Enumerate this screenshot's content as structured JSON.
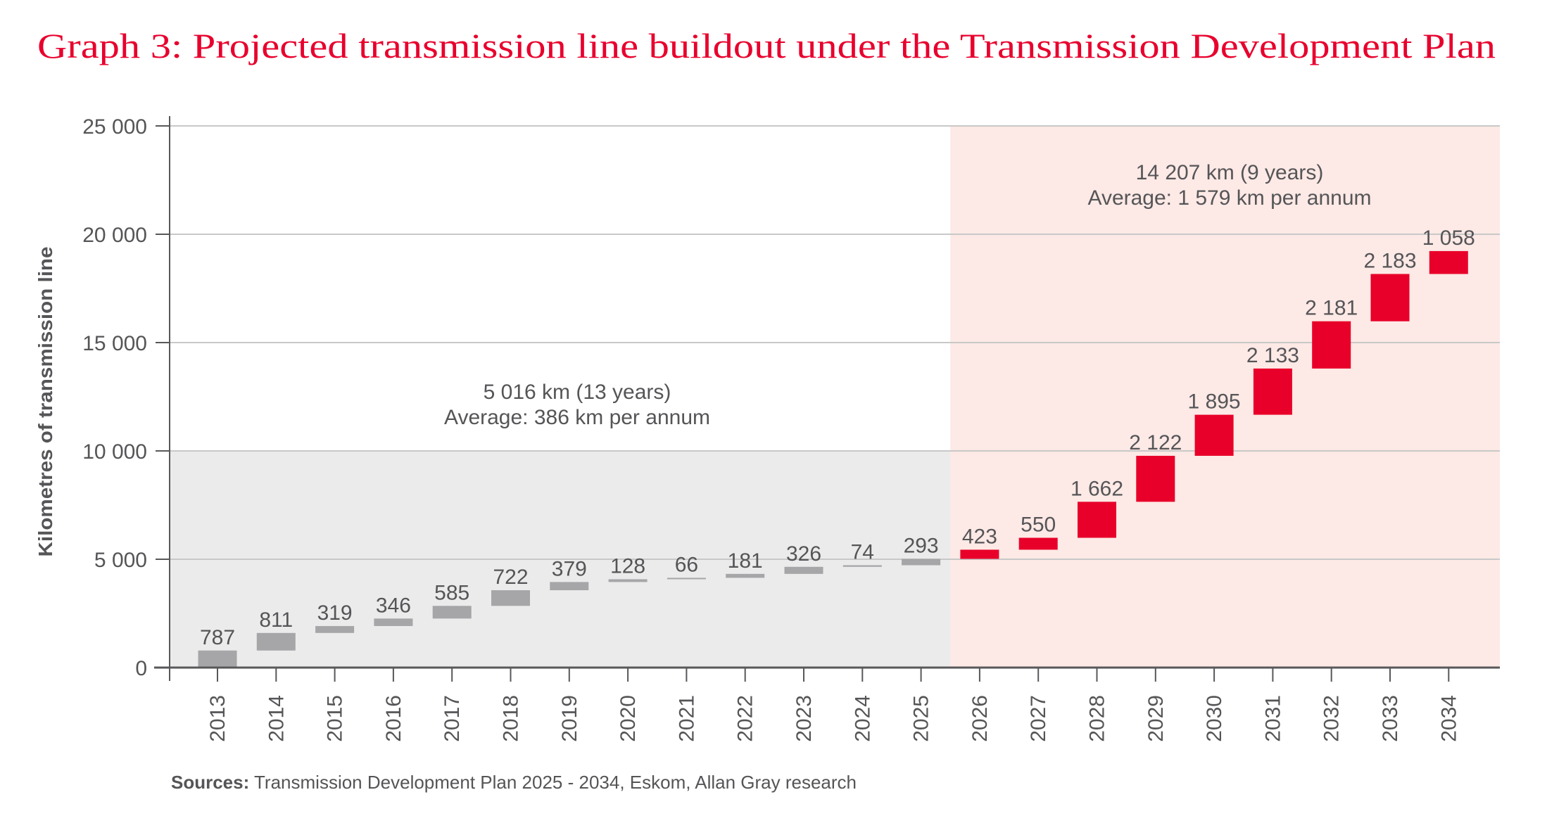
{
  "title": "Graph 3: Projected transmission line buildout under the Transmission Development Plan",
  "colors": {
    "title": "#e8002d",
    "historical_bar": "#a6a6a9",
    "projected_bar": "#e8002a",
    "historical_bg": "#ebebeb",
    "projected_bg": "#fde9e5",
    "grid": "#c8c8c8",
    "axis": "#58585b"
  },
  "chart_data": {
    "type": "bar",
    "subtype": "waterfall",
    "title": "Graph 3: Projected transmission line buildout under the Transmission Development Plan",
    "xlabel": "",
    "ylabel": "Kilometres of transmission line",
    "ylim": [
      0,
      25000
    ],
    "yticks": [
      0,
      5000,
      10000,
      15000,
      20000,
      25000
    ],
    "ytick_labels": [
      "0",
      "5 000",
      "10 000",
      "15 000",
      "20 000",
      "25 000"
    ],
    "grid": true,
    "categories": [
      "2013",
      "2014",
      "2015",
      "2016",
      "2017",
      "2018",
      "2019",
      "2020",
      "2021",
      "2022",
      "2023",
      "2024",
      "2025",
      "2026",
      "2027",
      "2028",
      "2029",
      "2030",
      "2031",
      "2032",
      "2033",
      "2034"
    ],
    "values": [
      787,
      811,
      319,
      346,
      585,
      722,
      379,
      128,
      66,
      181,
      326,
      74,
      293,
      423,
      550,
      1662,
      2122,
      1895,
      2133,
      2181,
      2183,
      1058
    ],
    "value_labels": [
      "787",
      "811",
      "319",
      "346",
      "585",
      "722",
      "379",
      "128",
      "66",
      "181",
      "326",
      "74",
      "293",
      "423",
      "550",
      "1 662",
      "2 122",
      "1 895",
      "2 133",
      "2 181",
      "2 183",
      "1 058"
    ],
    "historical_through": "2025",
    "regions": [
      {
        "name": "historical",
        "from": "2013",
        "to": "2025",
        "shade_to_y": 10000,
        "annotation": [
          "5 016 km (13 years)",
          "Average: 386 km per annum"
        ]
      },
      {
        "name": "projected",
        "from": "2026",
        "to": "2034",
        "shade_to_y": 25000,
        "annotation": [
          "14 207 km (9 years)",
          "Average: 1 579 km per annum"
        ]
      }
    ]
  },
  "sources": {
    "label": "Sources:",
    "text": " Transmission Development Plan 2025 - 2034, Eskom, Allan Gray research"
  }
}
